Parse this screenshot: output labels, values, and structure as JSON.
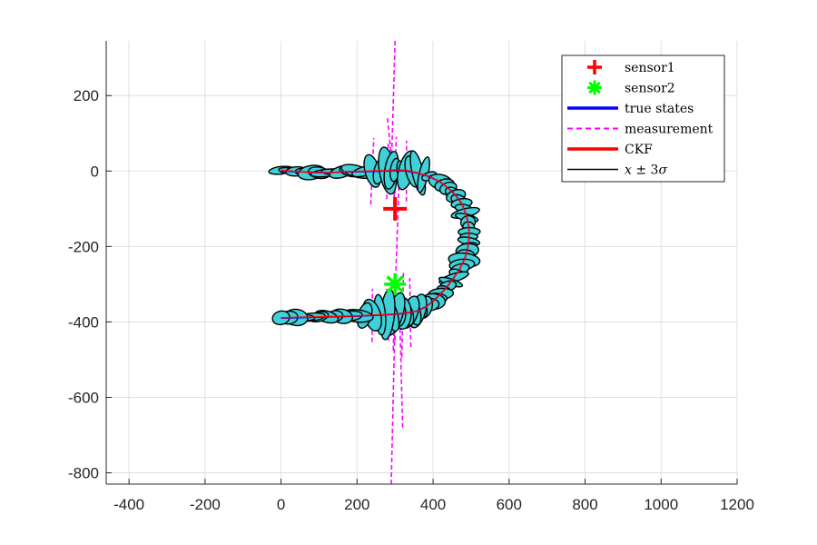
{
  "chart_data": {
    "type": "line",
    "title": "",
    "xlabel": "",
    "ylabel": "",
    "xlim": [
      -460,
      1200
    ],
    "ylim": [
      -830,
      345
    ],
    "xticks": [
      -400,
      -200,
      0,
      200,
      400,
      600,
      800,
      1000,
      1200
    ],
    "yticks": [
      -800,
      -600,
      -400,
      -200,
      0,
      200
    ],
    "grid": true,
    "legend_position": "top-right",
    "sensors": [
      {
        "name": "sensor1",
        "x": 300,
        "y": -100,
        "marker": "plus",
        "color": "#ff0000"
      },
      {
        "name": "sensor2",
        "x": 300,
        "y": -300,
        "marker": "asterisk",
        "color": "#00ff00"
      }
    ],
    "series": [
      {
        "name": "true states",
        "color": "#0000ff",
        "style": "solid",
        "x": [
          0,
          40,
          80,
          120,
          160,
          200,
          240,
          280,
          300,
          330,
          360,
          390,
          420,
          440,
          460,
          475,
          485,
          492,
          495,
          494,
          490,
          482,
          470,
          455,
          438,
          420,
          400,
          380,
          360,
          340,
          320,
          300,
          280,
          240,
          200,
          160,
          120,
          80,
          40,
          0
        ],
        "y": [
          0,
          -2,
          -3,
          -4,
          -3,
          -2,
          -1,
          0,
          1,
          0,
          -6,
          -15,
          -30,
          -45,
          -65,
          -85,
          -110,
          -135,
          -160,
          -185,
          -210,
          -235,
          -260,
          -282,
          -305,
          -325,
          -345,
          -360,
          -370,
          -375,
          -378,
          -380,
          -381,
          -383,
          -385,
          -386,
          -387,
          -388,
          -389,
          -390
        ]
      },
      {
        "name": "measurement",
        "color": "#ff00ff",
        "style": "dashed",
        "x": [],
        "y": []
      },
      {
        "name": "CKF",
        "color": "#ff0000",
        "style": "solid",
        "x": [
          0,
          40,
          80,
          120,
          160,
          200,
          240,
          280,
          300,
          330,
          360,
          390,
          420,
          440,
          460,
          475,
          485,
          492,
          495,
          494,
          490,
          482,
          470,
          455,
          438,
          420,
          400,
          380,
          360,
          340,
          320,
          300,
          280,
          240,
          200,
          160,
          120,
          80,
          40,
          0
        ],
        "y": [
          2,
          -1,
          -4,
          -5,
          -2,
          -1,
          0,
          1,
          3,
          2,
          -5,
          -14,
          -29,
          -46,
          -66,
          -86,
          -111,
          -136,
          -161,
          -186,
          -211,
          -236,
          -261,
          -283,
          -306,
          -326,
          -346,
          -361,
          -371,
          -374,
          -377,
          -379,
          -380,
          -382,
          -384,
          -385,
          -386,
          -387,
          -388,
          -389
        ]
      },
      {
        "name": "$x \\pm 3\\sigma$",
        "color": "#000000",
        "style": "solid",
        "x": [],
        "y": []
      }
    ],
    "legend_entries": [
      {
        "label": "sensor1",
        "symbol": "plus",
        "color": "#ff0000"
      },
      {
        "label": "sensor2",
        "symbol": "asterisk",
        "color": "#00ff00"
      },
      {
        "label": "true states",
        "symbol": "line",
        "color": "#0000ff"
      },
      {
        "label": "measurement",
        "symbol": "dashed",
        "color": "#ff00ff"
      },
      {
        "label": "CKF",
        "symbol": "line",
        "color": "#ff0000"
      },
      {
        "label": "$x \\pm 3\\sigma$",
        "symbol": "line",
        "color": "#000000"
      }
    ],
    "ellipse_fill_color": "#40d0d8"
  }
}
